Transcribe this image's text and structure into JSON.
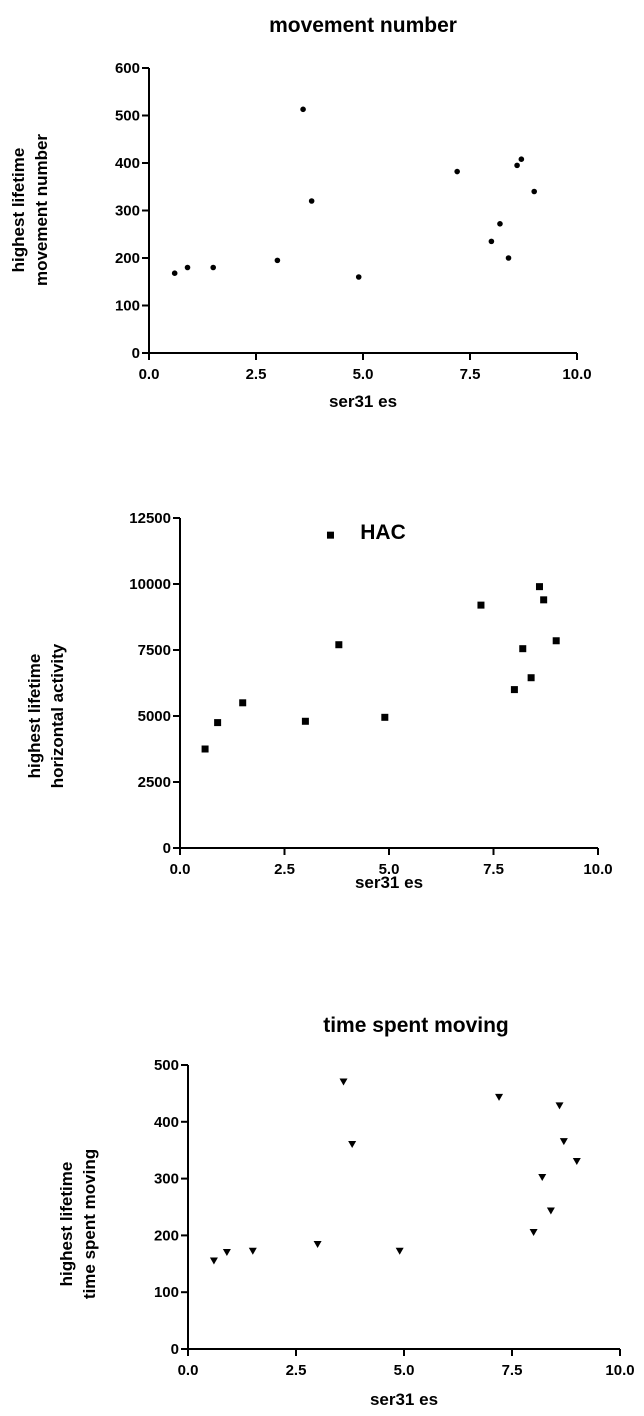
{
  "chart_data": [
    {
      "type": "scatter",
      "title": "movement number",
      "xlabel": "ser31 es",
      "ylabel": [
        "highest lifetime",
        "movement number"
      ],
      "xlim": [
        0,
        10
      ],
      "ylim": [
        0,
        600
      ],
      "xticks": [
        "0.0",
        "2.5",
        "5.0",
        "7.5",
        "10.0"
      ],
      "yticks": [
        "0",
        "100",
        "200",
        "300",
        "400",
        "500",
        "600"
      ],
      "xtick_values": [
        0,
        2.5,
        5,
        7.5,
        10
      ],
      "ytick_values": [
        0,
        100,
        200,
        300,
        400,
        500,
        600
      ],
      "marker": "circle",
      "color": "#000000",
      "series": [
        {
          "x": [
            0.6,
            0.9,
            1.5,
            3.0,
            3.6,
            3.8,
            4.9,
            7.2,
            8.0,
            8.2,
            8.4,
            8.6,
            8.7,
            9.0
          ],
          "y": [
            168,
            180,
            180,
            195,
            513,
            320,
            160,
            382,
            235,
            272,
            200,
            395,
            408,
            340
          ]
        }
      ]
    },
    {
      "type": "scatter",
      "title": "HAC",
      "xlabel": "ser31 es",
      "ylabel": [
        "highest lifetime",
        "horizontal activity"
      ],
      "xlim": [
        0,
        10
      ],
      "ylim": [
        0,
        12500
      ],
      "xticks": [
        "0.0",
        "2.5",
        "5.0",
        "7.5",
        "10.0"
      ],
      "yticks": [
        "0",
        "2500",
        "5000",
        "7500",
        "10000",
        "12500"
      ],
      "xtick_values": [
        0,
        2.5,
        5,
        7.5,
        10
      ],
      "ytick_values": [
        0,
        2500,
        5000,
        7500,
        10000,
        12500
      ],
      "marker": "square",
      "color": "#000000",
      "series": [
        {
          "x": [
            0.6,
            0.9,
            1.5,
            3.0,
            3.6,
            3.8,
            4.9,
            7.2,
            8.0,
            8.2,
            8.4,
            8.6,
            8.7,
            9.0
          ],
          "y": [
            3750,
            4750,
            5500,
            4800,
            11850,
            7700,
            4950,
            9200,
            6000,
            7550,
            6450,
            9900,
            9400,
            7850
          ]
        }
      ]
    },
    {
      "type": "scatter",
      "title": "time spent moving",
      "xlabel": "ser31 es",
      "ylabel": [
        "highest lifetime",
        "time spent moving"
      ],
      "xlim": [
        0,
        10
      ],
      "ylim": [
        0,
        500
      ],
      "xticks": [
        "0.0",
        "2.5",
        "5.0",
        "7.5",
        "10.0"
      ],
      "yticks": [
        "0",
        "100",
        "200",
        "300",
        "400",
        "500"
      ],
      "xtick_values": [
        0,
        2.5,
        5,
        7.5,
        10
      ],
      "ytick_values": [
        0,
        100,
        200,
        300,
        400,
        500
      ],
      "marker": "triangle-down",
      "color": "#000000",
      "series": [
        {
          "x": [
            0.6,
            0.9,
            1.5,
            3.0,
            3.6,
            3.8,
            4.9,
            7.2,
            8.0,
            8.2,
            8.4,
            8.6,
            8.7,
            9.0
          ],
          "y": [
            155,
            170,
            172,
            184,
            470,
            360,
            172,
            443,
            205,
            302,
            243,
            428,
            365,
            330
          ]
        }
      ]
    }
  ]
}
